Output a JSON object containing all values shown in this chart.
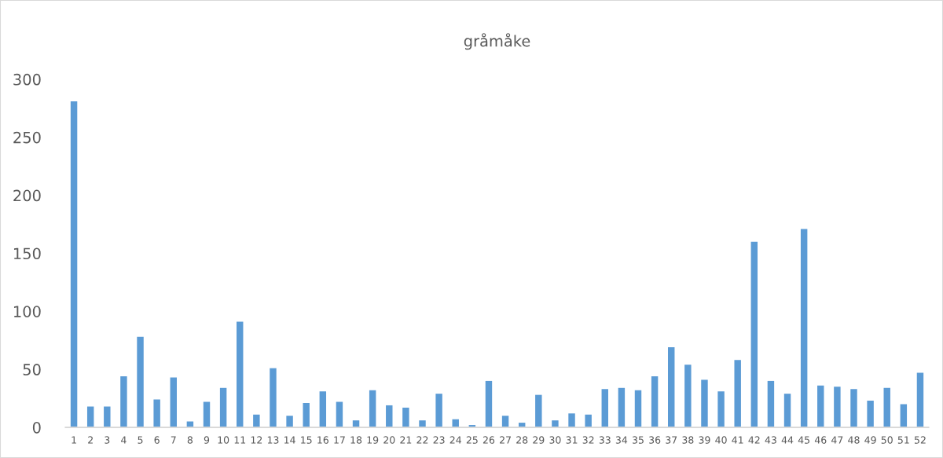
{
  "chart_data": {
    "type": "bar",
    "title": "gråmåke",
    "categories": [
      "1",
      "2",
      "3",
      "4",
      "5",
      "6",
      "7",
      "8",
      "9",
      "10",
      "11",
      "12",
      "13",
      "14",
      "15",
      "16",
      "17",
      "18",
      "19",
      "20",
      "21",
      "22",
      "23",
      "24",
      "25",
      "26",
      "27",
      "28",
      "29",
      "30",
      "31",
      "32",
      "33",
      "34",
      "35",
      "36",
      "37",
      "38",
      "39",
      "40",
      "41",
      "42",
      "43",
      "44",
      "45",
      "46",
      "47",
      "48",
      "49",
      "50",
      "51",
      "52"
    ],
    "values": [
      281,
      18,
      18,
      44,
      78,
      24,
      43,
      5,
      22,
      34,
      91,
      11,
      51,
      10,
      21,
      31,
      22,
      6,
      32,
      19,
      17,
      6,
      29,
      7,
      2,
      40,
      10,
      4,
      28,
      6,
      12,
      11,
      33,
      34,
      32,
      44,
      69,
      54,
      41,
      31,
      58,
      160,
      40,
      29,
      171,
      36,
      35,
      33,
      23,
      34,
      20,
      47
    ],
    "color": "#5b9bd5",
    "ylim": [
      0,
      300
    ],
    "yticks": [
      0,
      50,
      100,
      150,
      200,
      250,
      300
    ],
    "grid": false,
    "legend": false
  }
}
